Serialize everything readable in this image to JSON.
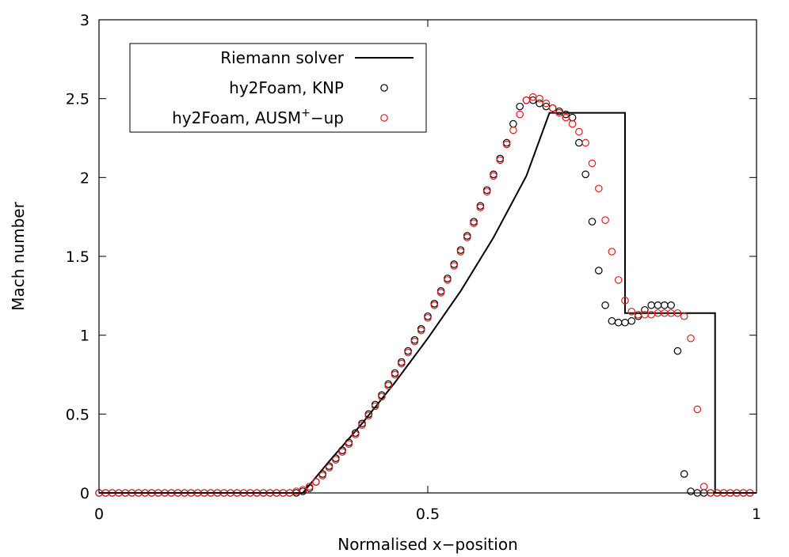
{
  "chart_data": {
    "type": "line",
    "xlabel": "Normalised x−position",
    "ylabel": "Mach number",
    "xlim": [
      0,
      1
    ],
    "ylim": [
      0,
      3
    ],
    "xticks": [
      0,
      0.5,
      1
    ],
    "xtick_labels": [
      "0",
      "0.5",
      "1"
    ],
    "yticks": [
      0,
      0.5,
      1,
      1.5,
      2,
      2.5,
      3
    ],
    "ytick_labels": [
      "0",
      "0.5",
      "1",
      "1.5",
      "2",
      "2.5",
      "3"
    ],
    "grid": false,
    "legend_position": "top-left",
    "series": [
      {
        "name": "Riemann solver",
        "style": "line",
        "color": "#000000",
        "x": [
          0,
          0.31,
          0.35,
          0.4,
          0.45,
          0.5,
          0.55,
          0.6,
          0.65,
          0.685,
          0.8,
          0.8,
          0.937,
          0.937,
          1.0
        ],
        "y": [
          0,
          0,
          0.2,
          0.44,
          0.7,
          0.98,
          1.28,
          1.62,
          2.01,
          2.41,
          2.41,
          1.14,
          1.14,
          0,
          0
        ]
      },
      {
        "name": "hy2Foam, KNP",
        "style": "markers",
        "color": "#000000",
        "x": [
          0.0,
          0.01,
          0.02,
          0.03,
          0.04,
          0.05,
          0.06,
          0.07,
          0.08,
          0.09,
          0.1,
          0.11,
          0.12,
          0.13,
          0.14,
          0.15,
          0.16,
          0.17,
          0.18,
          0.19,
          0.2,
          0.21,
          0.22,
          0.23,
          0.24,
          0.25,
          0.26,
          0.27,
          0.28,
          0.29,
          0.3,
          0.31,
          0.32,
          0.33,
          0.34,
          0.35,
          0.36,
          0.37,
          0.38,
          0.39,
          0.4,
          0.41,
          0.42,
          0.43,
          0.44,
          0.45,
          0.46,
          0.47,
          0.48,
          0.49,
          0.5,
          0.51,
          0.52,
          0.53,
          0.54,
          0.55,
          0.56,
          0.57,
          0.58,
          0.59,
          0.6,
          0.61,
          0.62,
          0.63,
          0.64,
          0.65,
          0.66,
          0.67,
          0.68,
          0.69,
          0.7,
          0.71,
          0.72,
          0.73,
          0.74,
          0.75,
          0.76,
          0.77,
          0.78,
          0.79,
          0.8,
          0.81,
          0.82,
          0.83,
          0.84,
          0.85,
          0.86,
          0.87,
          0.88,
          0.89,
          0.9,
          0.91,
          0.92,
          0.93,
          0.94,
          0.95,
          0.96,
          0.97,
          0.98,
          0.99
        ],
        "y": [
          0,
          0,
          0,
          0,
          0,
          0,
          0,
          0,
          0,
          0,
          0,
          0,
          0,
          0,
          0,
          0,
          0,
          0,
          0,
          0,
          0,
          0,
          0,
          0,
          0,
          0,
          0,
          0,
          0,
          0,
          0,
          0.01,
          0.03,
          0.07,
          0.12,
          0.17,
          0.22,
          0.27,
          0.32,
          0.38,
          0.44,
          0.5,
          0.56,
          0.62,
          0.69,
          0.76,
          0.83,
          0.9,
          0.97,
          1.04,
          1.12,
          1.2,
          1.28,
          1.36,
          1.45,
          1.54,
          1.63,
          1.72,
          1.82,
          1.92,
          2.02,
          2.12,
          2.22,
          2.34,
          2.45,
          2.49,
          2.49,
          2.47,
          2.45,
          2.44,
          2.42,
          2.4,
          2.38,
          2.22,
          2.02,
          1.72,
          1.41,
          1.19,
          1.09,
          1.08,
          1.08,
          1.09,
          1.12,
          1.16,
          1.19,
          1.19,
          1.19,
          1.19,
          0.9,
          0.12,
          0.01,
          0.0,
          0.0,
          0,
          0,
          0,
          0,
          0,
          0,
          0
        ],
        "y_alignment_note": ""
      },
      {
        "name": "hy2Foam, AUSM⁺−up",
        "style": "markers",
        "color": "#e31a1c",
        "x": [
          0.0,
          0.01,
          0.02,
          0.03,
          0.04,
          0.05,
          0.06,
          0.07,
          0.08,
          0.09,
          0.1,
          0.11,
          0.12,
          0.13,
          0.14,
          0.15,
          0.16,
          0.17,
          0.18,
          0.19,
          0.2,
          0.21,
          0.22,
          0.23,
          0.24,
          0.25,
          0.26,
          0.27,
          0.28,
          0.29,
          0.3,
          0.31,
          0.32,
          0.33,
          0.34,
          0.35,
          0.36,
          0.37,
          0.38,
          0.39,
          0.4,
          0.41,
          0.42,
          0.43,
          0.44,
          0.45,
          0.46,
          0.47,
          0.48,
          0.49,
          0.5,
          0.51,
          0.52,
          0.53,
          0.54,
          0.55,
          0.56,
          0.57,
          0.58,
          0.59,
          0.6,
          0.61,
          0.62,
          0.63,
          0.64,
          0.65,
          0.66,
          0.67,
          0.68,
          0.69,
          0.7,
          0.71,
          0.72,
          0.73,
          0.74,
          0.75,
          0.76,
          0.77,
          0.78,
          0.79,
          0.8,
          0.81,
          0.82,
          0.83,
          0.84,
          0.85,
          0.86,
          0.87,
          0.88,
          0.89,
          0.9,
          0.91,
          0.92,
          0.93,
          0.94,
          0.95,
          0.96,
          0.97,
          0.98,
          0.99
        ],
        "y": [
          0,
          0,
          0,
          0,
          0,
          0,
          0,
          0,
          0,
          0,
          0,
          0,
          0,
          0,
          0,
          0,
          0,
          0,
          0,
          0,
          0,
          0,
          0,
          0,
          0,
          0,
          0,
          0,
          0,
          0,
          0.01,
          0.02,
          0.04,
          0.07,
          0.11,
          0.16,
          0.21,
          0.26,
          0.31,
          0.37,
          0.43,
          0.49,
          0.55,
          0.61,
          0.68,
          0.75,
          0.82,
          0.89,
          0.96,
          1.03,
          1.11,
          1.19,
          1.27,
          1.35,
          1.44,
          1.53,
          1.62,
          1.71,
          1.81,
          1.91,
          2.01,
          2.11,
          2.21,
          2.3,
          2.4,
          2.49,
          2.51,
          2.5,
          2.47,
          2.44,
          2.41,
          2.38,
          2.34,
          2.29,
          2.22,
          2.09,
          1.93,
          1.73,
          1.53,
          1.35,
          1.22,
          1.15,
          1.13,
          1.13,
          1.13,
          1.14,
          1.14,
          1.14,
          1.14,
          1.12,
          0.98,
          0.53,
          0.04,
          0.0,
          0,
          0,
          0,
          0,
          0,
          0
        ]
      }
    ]
  },
  "legend": {
    "entries": [
      {
        "label": "Riemann solver",
        "symbol": "line",
        "color": "#000000"
      },
      {
        "label_main": "hy2Foam, KNP",
        "label_sup": "",
        "label_tail": "",
        "symbol": "circle",
        "color": "#000000"
      },
      {
        "label_main": "hy2Foam, AUSM",
        "label_sup": "+",
        "label_tail": "−up",
        "symbol": "circle",
        "color": "#e31a1c"
      }
    ]
  }
}
